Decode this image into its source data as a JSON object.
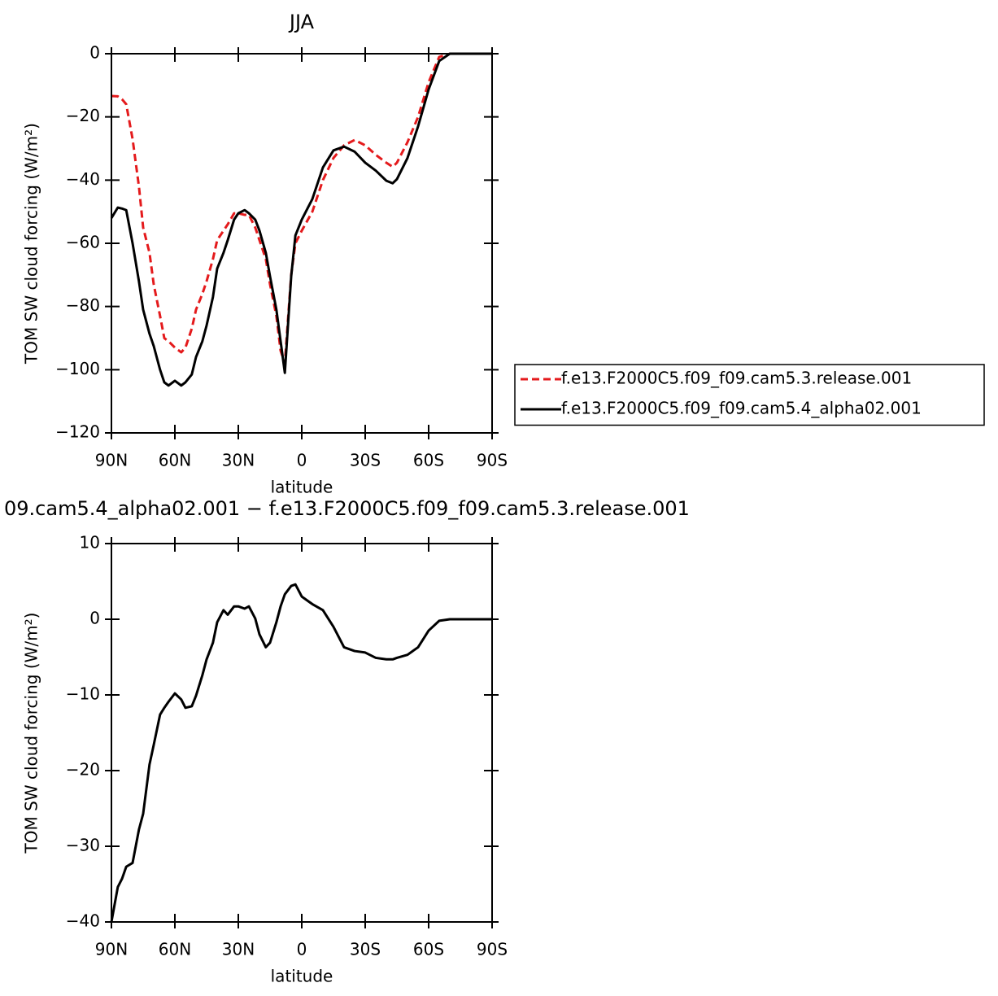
{
  "chart_data": [
    {
      "type": "line",
      "title": "JJA",
      "xlabel": "latitude",
      "ylabel": "TOM SW cloud forcing (W/m²)",
      "xlim": [
        90,
        -90
      ],
      "xticks": [
        {
          "value": 90,
          "label": "90N"
        },
        {
          "value": 60,
          "label": "60N"
        },
        {
          "value": 30,
          "label": "30N"
        },
        0,
        {
          "value": -30,
          "label": "30S"
        },
        {
          "value": -60,
          "label": "60S"
        },
        {
          "value": -90,
          "label": "90S"
        }
      ],
      "ylim": [
        -120,
        0
      ],
      "yticks": [
        {
          "value": -120,
          "label": "−120"
        },
        {
          "value": -100,
          "label": "−100"
        },
        {
          "value": -80,
          "label": "−80"
        },
        {
          "value": -60,
          "label": "−60"
        },
        {
          "value": -40,
          "label": "−40"
        },
        {
          "value": -20,
          "label": "−20"
        },
        0
      ],
      "legend": "right",
      "x": [
        90,
        87,
        85,
        83,
        80,
        77,
        75,
        72,
        70,
        67,
        65,
        63,
        60,
        57,
        55,
        52,
        50,
        47,
        45,
        42,
        40,
        37,
        35,
        32,
        30,
        27,
        25,
        22,
        20,
        17,
        15,
        12,
        10,
        8,
        5,
        3,
        0,
        -5,
        -10,
        -15,
        -20,
        -25,
        -30,
        -35,
        -40,
        -43,
        -45,
        -50,
        -55,
        -60,
        -65,
        -70,
        -80,
        -90
      ],
      "series": [
        {
          "name": "f.e13.F2000C5.f09_f09.cam5.3.release.001",
          "color": "#e41a1c",
          "line_style": "dashed",
          "values": [
            -13.4,
            -13.5,
            -14.4,
            -16,
            -27,
            -42,
            -55,
            -63,
            -73,
            -83,
            -90,
            -91,
            -93,
            -94.5,
            -93,
            -87,
            -81,
            -76,
            -72,
            -65,
            -59,
            -56,
            -54,
            -50.5,
            -50.5,
            -51,
            -51,
            -55,
            -59,
            -65,
            -73,
            -83,
            -94,
            -98,
            -70,
            -60,
            -56,
            -50,
            -40,
            -33,
            -29,
            -27.3,
            -29,
            -32,
            -34.5,
            -35.8,
            -34.5,
            -28,
            -20,
            -9,
            -1,
            0,
            0,
            0
          ]
        },
        {
          "name": "f.e13.F2000C5.f09_f09.cam5.4_alpha02.001",
          "color": "#000000",
          "line_style": "solid",
          "values": [
            -52,
            -48.7,
            -49,
            -49.5,
            -60,
            -72,
            -81,
            -88.6,
            -92.5,
            -100,
            -104,
            -105,
            -103.5,
            -105,
            -104,
            -101.5,
            -96,
            -91,
            -86,
            -77,
            -68,
            -63,
            -59,
            -52.5,
            -50.5,
            -49.5,
            -50.5,
            -52.5,
            -56,
            -63,
            -70.5,
            -81,
            -91,
            -101,
            -70.5,
            -57.5,
            -52.5,
            -46,
            -36,
            -30.6,
            -29.4,
            -31,
            -34.5,
            -37,
            -40.2,
            -41,
            -39.7,
            -33,
            -23,
            -11.3,
            -2.3,
            0,
            0,
            0
          ]
        }
      ]
    },
    {
      "type": "line",
      "title": "09.cam5.4_alpha02.001 − f.e13.F2000C5.f09_f09.cam5.3.release.001",
      "xlabel": "latitude",
      "ylabel": "TOM SW cloud forcing (W/m²)",
      "xlim": [
        90,
        -90
      ],
      "xticks": [
        {
          "value": 90,
          "label": "90N"
        },
        {
          "value": 60,
          "label": "60N"
        },
        {
          "value": 30,
          "label": "30N"
        },
        0,
        {
          "value": -30,
          "label": "30S"
        },
        {
          "value": -60,
          "label": "60S"
        },
        {
          "value": -90,
          "label": "90S"
        }
      ],
      "ylim": [
        -40,
        10
      ],
      "yticks": [
        {
          "value": -40,
          "label": "−40"
        },
        {
          "value": -30,
          "label": "−30"
        },
        {
          "value": -20,
          "label": "−20"
        },
        {
          "value": -10,
          "label": "−10"
        },
        0,
        10
      ],
      "x": [
        90,
        87,
        85,
        83,
        80,
        77,
        75,
        72,
        70,
        67,
        65,
        63,
        60,
        57,
        55,
        52,
        50,
        47,
        45,
        42,
        40,
        37,
        35,
        32,
        30,
        27,
        25,
        22,
        20,
        17,
        15,
        12,
        10,
        8,
        5,
        3,
        0,
        -5,
        -10,
        -15,
        -20,
        -25,
        -30,
        -35,
        -40,
        -43,
        -45,
        -50,
        -55,
        -60,
        -65,
        -70,
        -80,
        -90
      ],
      "series": [
        {
          "color": "#000000",
          "line_style": "solid",
          "values": [
            -40,
            -35.4,
            -34.3,
            -32.7,
            -32.2,
            -27.8,
            -25.7,
            -19.2,
            -16.6,
            -12.6,
            -11.7,
            -10.9,
            -9.8,
            -10.6,
            -11.7,
            -11.5,
            -10.1,
            -7.4,
            -5.3,
            -3.1,
            -0.4,
            1.2,
            0.6,
            1.7,
            1.7,
            1.4,
            1.7,
            0.1,
            -2,
            -3.7,
            -3.1,
            -0.4,
            1.7,
            3.3,
            4.4,
            4.6,
            3,
            2,
            1.2,
            -1,
            -3.7,
            -4.2,
            -4.4,
            -5.1,
            -5.3,
            -5.3,
            -5.1,
            -4.7,
            -3.7,
            -1.5,
            -0.2,
            0,
            0,
            0
          ]
        }
      ]
    }
  ]
}
